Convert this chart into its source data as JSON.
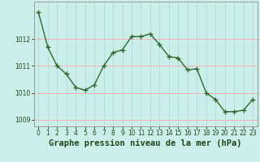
{
  "x": [
    0,
    1,
    2,
    3,
    4,
    5,
    6,
    7,
    8,
    9,
    10,
    11,
    12,
    13,
    14,
    15,
    16,
    17,
    18,
    19,
    20,
    21,
    22,
    23
  ],
  "y": [
    1013.0,
    1011.7,
    1011.0,
    1010.7,
    1010.2,
    1010.1,
    1010.3,
    1011.0,
    1011.5,
    1011.6,
    1012.1,
    1012.1,
    1012.2,
    1011.8,
    1011.35,
    1011.3,
    1010.85,
    1010.9,
    1010.0,
    1009.75,
    1009.3,
    1009.3,
    1009.35,
    1009.75
  ],
  "line_color": "#2d6a2d",
  "marker": "+",
  "bg_color": "#cceee8",
  "grid_color_v": "#aadddd",
  "grid_color_h": "#ffaaaa",
  "xlabel": "Graphe pression niveau de la mer (hPa)",
  "xlabel_color": "#1a4a1a",
  "xlim": [
    -0.5,
    23.5
  ],
  "ylim": [
    1008.75,
    1013.4
  ],
  "yticks": [
    1009,
    1010,
    1011,
    1012
  ],
  "xticks": [
    0,
    1,
    2,
    3,
    4,
    5,
    6,
    7,
    8,
    9,
    10,
    11,
    12,
    13,
    14,
    15,
    16,
    17,
    18,
    19,
    20,
    21,
    22,
    23
  ],
  "tick_color": "#1a4a1a",
  "tick_fontsize": 5.5,
  "xlabel_fontsize": 7.5,
  "linewidth": 1.0,
  "markersize": 4,
  "markeredgewidth": 1.0
}
